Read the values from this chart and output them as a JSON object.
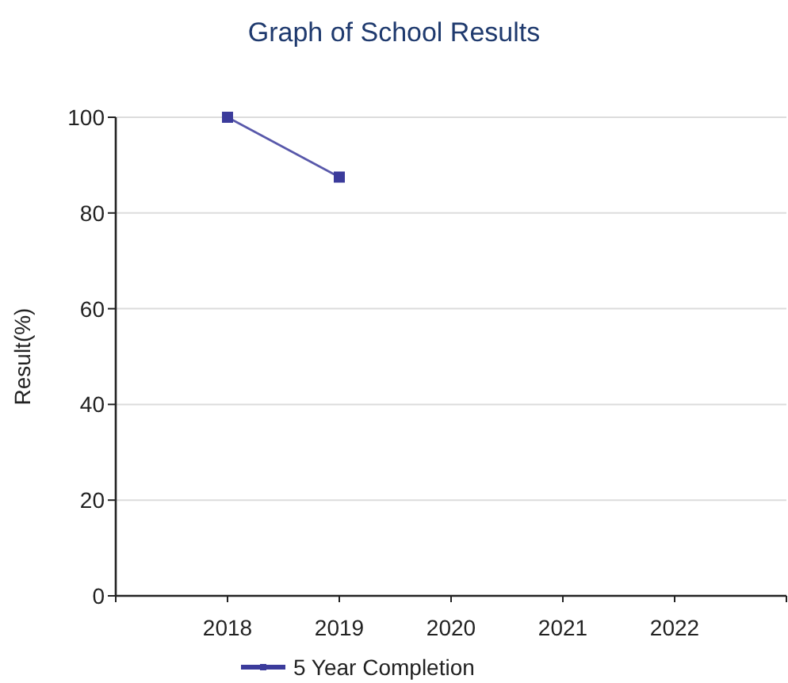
{
  "chart_data": {
    "type": "line",
    "title": "Graph of School Results",
    "ylabel": "Result(%)",
    "categories": [
      "2018",
      "2019",
      "2020",
      "2021",
      "2022"
    ],
    "series": [
      {
        "name": "5 Year Completion",
        "color": "#3b3b9b",
        "values": [
          100,
          87.5,
          null,
          null,
          null
        ]
      }
    ],
    "ylim": [
      0,
      100
    ],
    "yticks": [
      0,
      20,
      40,
      60,
      80,
      100
    ],
    "grid": "y",
    "legend": "bottom",
    "marker": "square",
    "line_style": "solid"
  }
}
